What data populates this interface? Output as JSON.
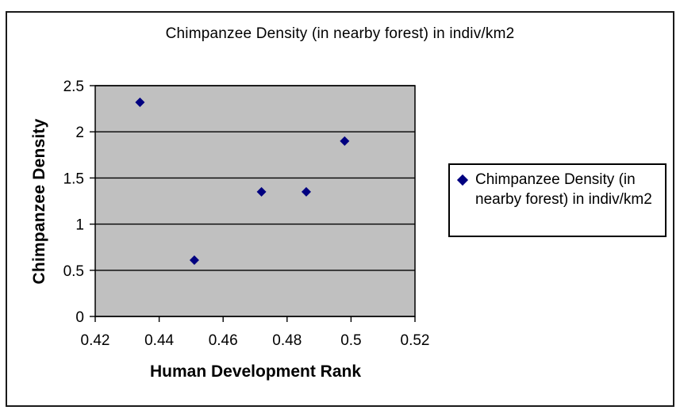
{
  "chart_data": {
    "type": "scatter",
    "title": "Chimpanzee Density (in nearby forest) in indiv/km2",
    "xlabel": "Human Development Rank",
    "ylabel": "Chimpanzee Density",
    "xlim": [
      0.42,
      0.52
    ],
    "ylim": [
      0,
      2.5
    ],
    "x_ticks": {
      "values": [
        0.42,
        0.44,
        0.46,
        0.48,
        0.5,
        0.52
      ],
      "labels": [
        "0.42",
        "0.44",
        "0.46",
        "0.48",
        "0.5",
        "0.52"
      ]
    },
    "y_ticks": {
      "values": [
        0,
        0.5,
        1,
        1.5,
        2,
        2.5
      ],
      "labels": [
        "0",
        "0.5",
        "1",
        "1.5",
        "2",
        "2.5"
      ]
    },
    "grid": "horizontal",
    "gridline_color": "#000000",
    "legend_position": "right",
    "plot_bg": "#c0c0c0",
    "series": [
      {
        "name": "Chimpanzee Density (in nearby forest) in indiv/km2",
        "marker": "diamond",
        "color": "#000080",
        "points": [
          [
            0.434,
            2.32
          ],
          [
            0.451,
            0.61
          ],
          [
            0.472,
            1.35
          ],
          [
            0.486,
            1.35
          ],
          [
            0.498,
            1.9
          ]
        ]
      }
    ]
  }
}
